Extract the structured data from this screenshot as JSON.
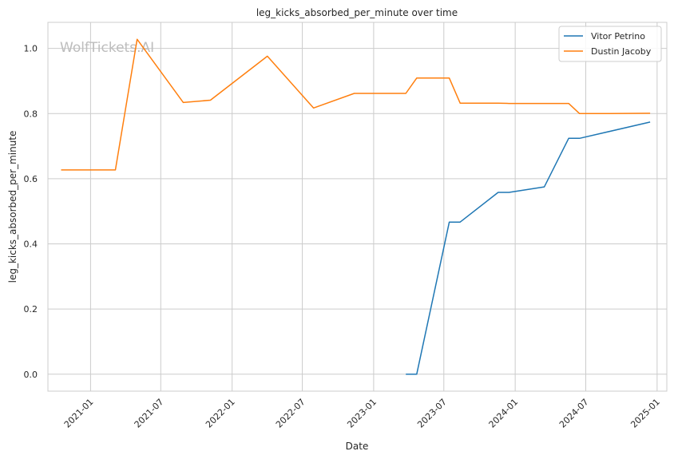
{
  "watermark": "WolfTickets.AI",
  "chart_data": {
    "type": "line",
    "title": "leg_kicks_absorbed_per_minute over time",
    "xlabel": "Date",
    "ylabel": "leg_kicks_absorbed_per_minute",
    "xlim": [
      "2020-09-13",
      "2025-01-26"
    ],
    "ylim": [
      -0.052,
      1.08
    ],
    "x_ticks": [
      "2021-01",
      "2021-07",
      "2022-01",
      "2022-07",
      "2023-01",
      "2023-07",
      "2024-01",
      "2024-07",
      "2025-01"
    ],
    "y_ticks": [
      0.0,
      0.2,
      0.4,
      0.6,
      0.8,
      1.0
    ],
    "y_tick_labels": [
      "0.0",
      "0.2",
      "0.4",
      "0.6",
      "0.8",
      "1.0"
    ],
    "grid": true,
    "legend": "top-right",
    "series": [
      {
        "name": "Vitor Petrino",
        "color": "#1f77b4",
        "points": [
          [
            "2023-03-25",
            0.0
          ],
          [
            "2023-04-22",
            0.0
          ],
          [
            "2023-07-15",
            0.467
          ],
          [
            "2023-08-12",
            0.467
          ],
          [
            "2023-11-18",
            0.558
          ],
          [
            "2023-12-16",
            0.558
          ],
          [
            "2024-03-16",
            0.575
          ],
          [
            "2024-05-18",
            0.724
          ],
          [
            "2024-06-15",
            0.724
          ],
          [
            "2024-12-14",
            0.774
          ]
        ]
      },
      {
        "name": "Dustin Jacoby",
        "color": "#ff7f0e",
        "points": [
          [
            "2020-10-17",
            0.627
          ],
          [
            "2020-12-05",
            0.627
          ],
          [
            "2021-03-06",
            0.627
          ],
          [
            "2021-05-01",
            1.028
          ],
          [
            "2021-08-28",
            0.834
          ],
          [
            "2021-11-06",
            0.841
          ],
          [
            "2022-04-02",
            0.976
          ],
          [
            "2022-07-30",
            0.817
          ],
          [
            "2022-11-12",
            0.862
          ],
          [
            "2023-03-25",
            0.862
          ],
          [
            "2023-04-22",
            0.909
          ],
          [
            "2023-07-15",
            0.909
          ],
          [
            "2023-08-12",
            0.832
          ],
          [
            "2023-11-18",
            0.832
          ],
          [
            "2023-12-16",
            0.831
          ],
          [
            "2024-03-16",
            0.831
          ],
          [
            "2024-05-18",
            0.831
          ],
          [
            "2024-06-15",
            0.8
          ],
          [
            "2024-08-10",
            0.8
          ],
          [
            "2024-12-14",
            0.801
          ]
        ]
      }
    ]
  }
}
